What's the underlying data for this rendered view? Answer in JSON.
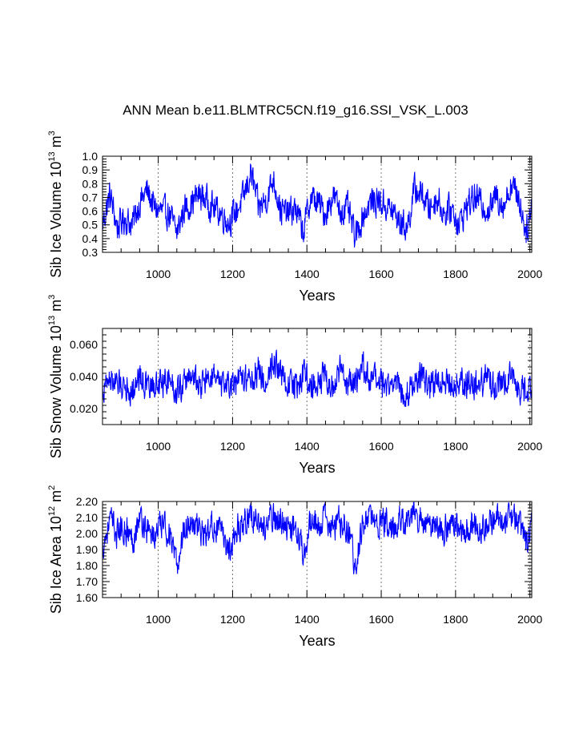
{
  "title": "ANN Mean b.e11.BLMTRC5CN.f19_g16.SSI_VSK_L.003",
  "chart_data": [
    {
      "type": "line",
      "title": "",
      "xlabel": "Years",
      "ylabel_main": "Sib Ice Volume 10",
      "ylabel_exp": "13",
      "ylabel_unit": " m",
      "ylabel_unit_exp": "3",
      "xlim": [
        850,
        2005
      ],
      "ylim": [
        0.3,
        1.0
      ],
      "xticks": [
        1000,
        1200,
        1400,
        1600,
        1800,
        2000
      ],
      "xtick_labels": [
        "1000",
        "1200",
        "1400",
        "1600",
        "1800",
        "2000"
      ],
      "yticks": [
        0.3,
        0.4,
        0.5,
        0.6,
        0.7,
        0.8,
        0.9,
        1.0
      ],
      "ytick_labels": [
        "0.3",
        "0.4",
        "0.5",
        "0.6",
        "0.7",
        "0.8",
        "0.9",
        "1.0"
      ],
      "grid": "vertical dotted at major x ticks",
      "line_color": "#0000ff",
      "x": [
        850,
        870,
        890,
        910,
        930,
        950,
        970,
        990,
        1010,
        1030,
        1050,
        1070,
        1090,
        1110,
        1130,
        1150,
        1170,
        1190,
        1210,
        1230,
        1250,
        1270,
        1290,
        1310,
        1330,
        1350,
        1370,
        1390,
        1410,
        1430,
        1450,
        1470,
        1490,
        1510,
        1530,
        1550,
        1570,
        1590,
        1610,
        1630,
        1650,
        1670,
        1690,
        1710,
        1730,
        1750,
        1770,
        1790,
        1810,
        1830,
        1850,
        1870,
        1890,
        1910,
        1930,
        1950,
        1970,
        1990,
        2005
      ],
      "y": [
        0.5,
        0.72,
        0.48,
        0.55,
        0.5,
        0.66,
        0.75,
        0.62,
        0.6,
        0.58,
        0.44,
        0.62,
        0.66,
        0.72,
        0.68,
        0.62,
        0.58,
        0.52,
        0.6,
        0.7,
        0.88,
        0.62,
        0.68,
        0.84,
        0.6,
        0.58,
        0.62,
        0.45,
        0.7,
        0.66,
        0.58,
        0.72,
        0.6,
        0.62,
        0.4,
        0.56,
        0.66,
        0.68,
        0.64,
        0.6,
        0.52,
        0.48,
        0.76,
        0.72,
        0.62,
        0.7,
        0.58,
        0.62,
        0.5,
        0.64,
        0.7,
        0.66,
        0.6,
        0.72,
        0.64,
        0.8,
        0.7,
        0.45,
        0.62
      ]
    },
    {
      "type": "line",
      "title": "",
      "xlabel": "Years",
      "ylabel_main": "Sib Snow Volume 10",
      "ylabel_exp": "13",
      "ylabel_unit": " m",
      "ylabel_unit_exp": "3",
      "xlim": [
        850,
        2005
      ],
      "ylim": [
        0.01,
        0.07
      ],
      "xticks": [
        1000,
        1200,
        1400,
        1600,
        1800,
        2000
      ],
      "xtick_labels": [
        "1000",
        "1200",
        "1400",
        "1600",
        "1800",
        "2000"
      ],
      "yticks": [
        0.02,
        0.04,
        0.06
      ],
      "ytick_labels": [
        "0.020",
        "0.040",
        "0.060"
      ],
      "grid": "vertical dotted at major x ticks",
      "line_color": "#0000ff",
      "x": [
        850,
        870,
        890,
        910,
        930,
        950,
        970,
        990,
        1010,
        1030,
        1050,
        1070,
        1090,
        1110,
        1130,
        1150,
        1170,
        1190,
        1210,
        1230,
        1250,
        1270,
        1290,
        1310,
        1330,
        1350,
        1370,
        1390,
        1410,
        1430,
        1450,
        1470,
        1490,
        1510,
        1530,
        1550,
        1570,
        1590,
        1610,
        1630,
        1650,
        1670,
        1690,
        1710,
        1730,
        1750,
        1770,
        1790,
        1810,
        1830,
        1850,
        1870,
        1890,
        1910,
        1930,
        1950,
        1970,
        1990,
        2005
      ],
      "y": [
        0.03,
        0.04,
        0.034,
        0.036,
        0.03,
        0.042,
        0.032,
        0.034,
        0.036,
        0.04,
        0.03,
        0.036,
        0.042,
        0.034,
        0.038,
        0.04,
        0.032,
        0.036,
        0.034,
        0.04,
        0.038,
        0.044,
        0.036,
        0.052,
        0.04,
        0.036,
        0.034,
        0.042,
        0.036,
        0.038,
        0.04,
        0.032,
        0.044,
        0.036,
        0.034,
        0.048,
        0.036,
        0.038,
        0.032,
        0.038,
        0.034,
        0.03,
        0.038,
        0.04,
        0.034,
        0.036,
        0.04,
        0.034,
        0.038,
        0.036,
        0.034,
        0.036,
        0.04,
        0.032,
        0.036,
        0.044,
        0.032,
        0.03,
        0.036
      ]
    },
    {
      "type": "line",
      "title": "",
      "xlabel": "Years",
      "ylabel_main": "Sib Ice Area 10",
      "ylabel_exp": "12",
      "ylabel_unit": " m",
      "ylabel_unit_exp": "2",
      "xlim": [
        850,
        2005
      ],
      "ylim": [
        1.6,
        2.2
      ],
      "xticks": [
        1000,
        1200,
        1400,
        1600,
        1800,
        2000
      ],
      "xtick_labels": [
        "1000",
        "1200",
        "1400",
        "1600",
        "1800",
        "2000"
      ],
      "yticks": [
        1.6,
        1.7,
        1.8,
        1.9,
        2.0,
        2.1,
        2.2
      ],
      "ytick_labels": [
        "1.60",
        "1.70",
        "1.80",
        "1.90",
        "2.00",
        "2.10",
        "2.20"
      ],
      "grid": "vertical dotted at major x ticks",
      "line_color": "#0000ff",
      "x": [
        850,
        870,
        890,
        910,
        930,
        950,
        970,
        990,
        1010,
        1030,
        1050,
        1070,
        1090,
        1110,
        1130,
        1150,
        1170,
        1190,
        1210,
        1230,
        1250,
        1270,
        1290,
        1310,
        1330,
        1350,
        1370,
        1390,
        1410,
        1430,
        1450,
        1470,
        1490,
        1510,
        1530,
        1550,
        1570,
        1590,
        1610,
        1630,
        1650,
        1670,
        1690,
        1710,
        1730,
        1750,
        1770,
        1790,
        1810,
        1830,
        1850,
        1870,
        1890,
        1910,
        1930,
        1950,
        1970,
        1990,
        2005
      ],
      "y": [
        1.92,
        2.08,
        2.0,
        2.04,
        1.96,
        2.1,
        2.02,
        1.98,
        2.06,
        2.0,
        1.78,
        2.04,
        2.08,
        2.02,
        1.98,
        2.06,
        2.0,
        1.9,
        2.02,
        2.08,
        2.12,
        2.06,
        2.04,
        2.1,
        2.08,
        2.02,
        2.06,
        1.9,
        2.08,
        2.04,
        2.1,
        2.02,
        2.08,
        2.04,
        1.8,
        2.06,
        2.1,
        2.04,
        2.08,
        2.02,
        2.1,
        2.06,
        2.12,
        2.08,
        2.04,
        2.06,
        2.02,
        2.08,
        2.0,
        2.04,
        2.08,
        2.02,
        2.06,
        2.1,
        2.04,
        2.12,
        2.06,
        1.92,
        2.06
      ]
    }
  ]
}
